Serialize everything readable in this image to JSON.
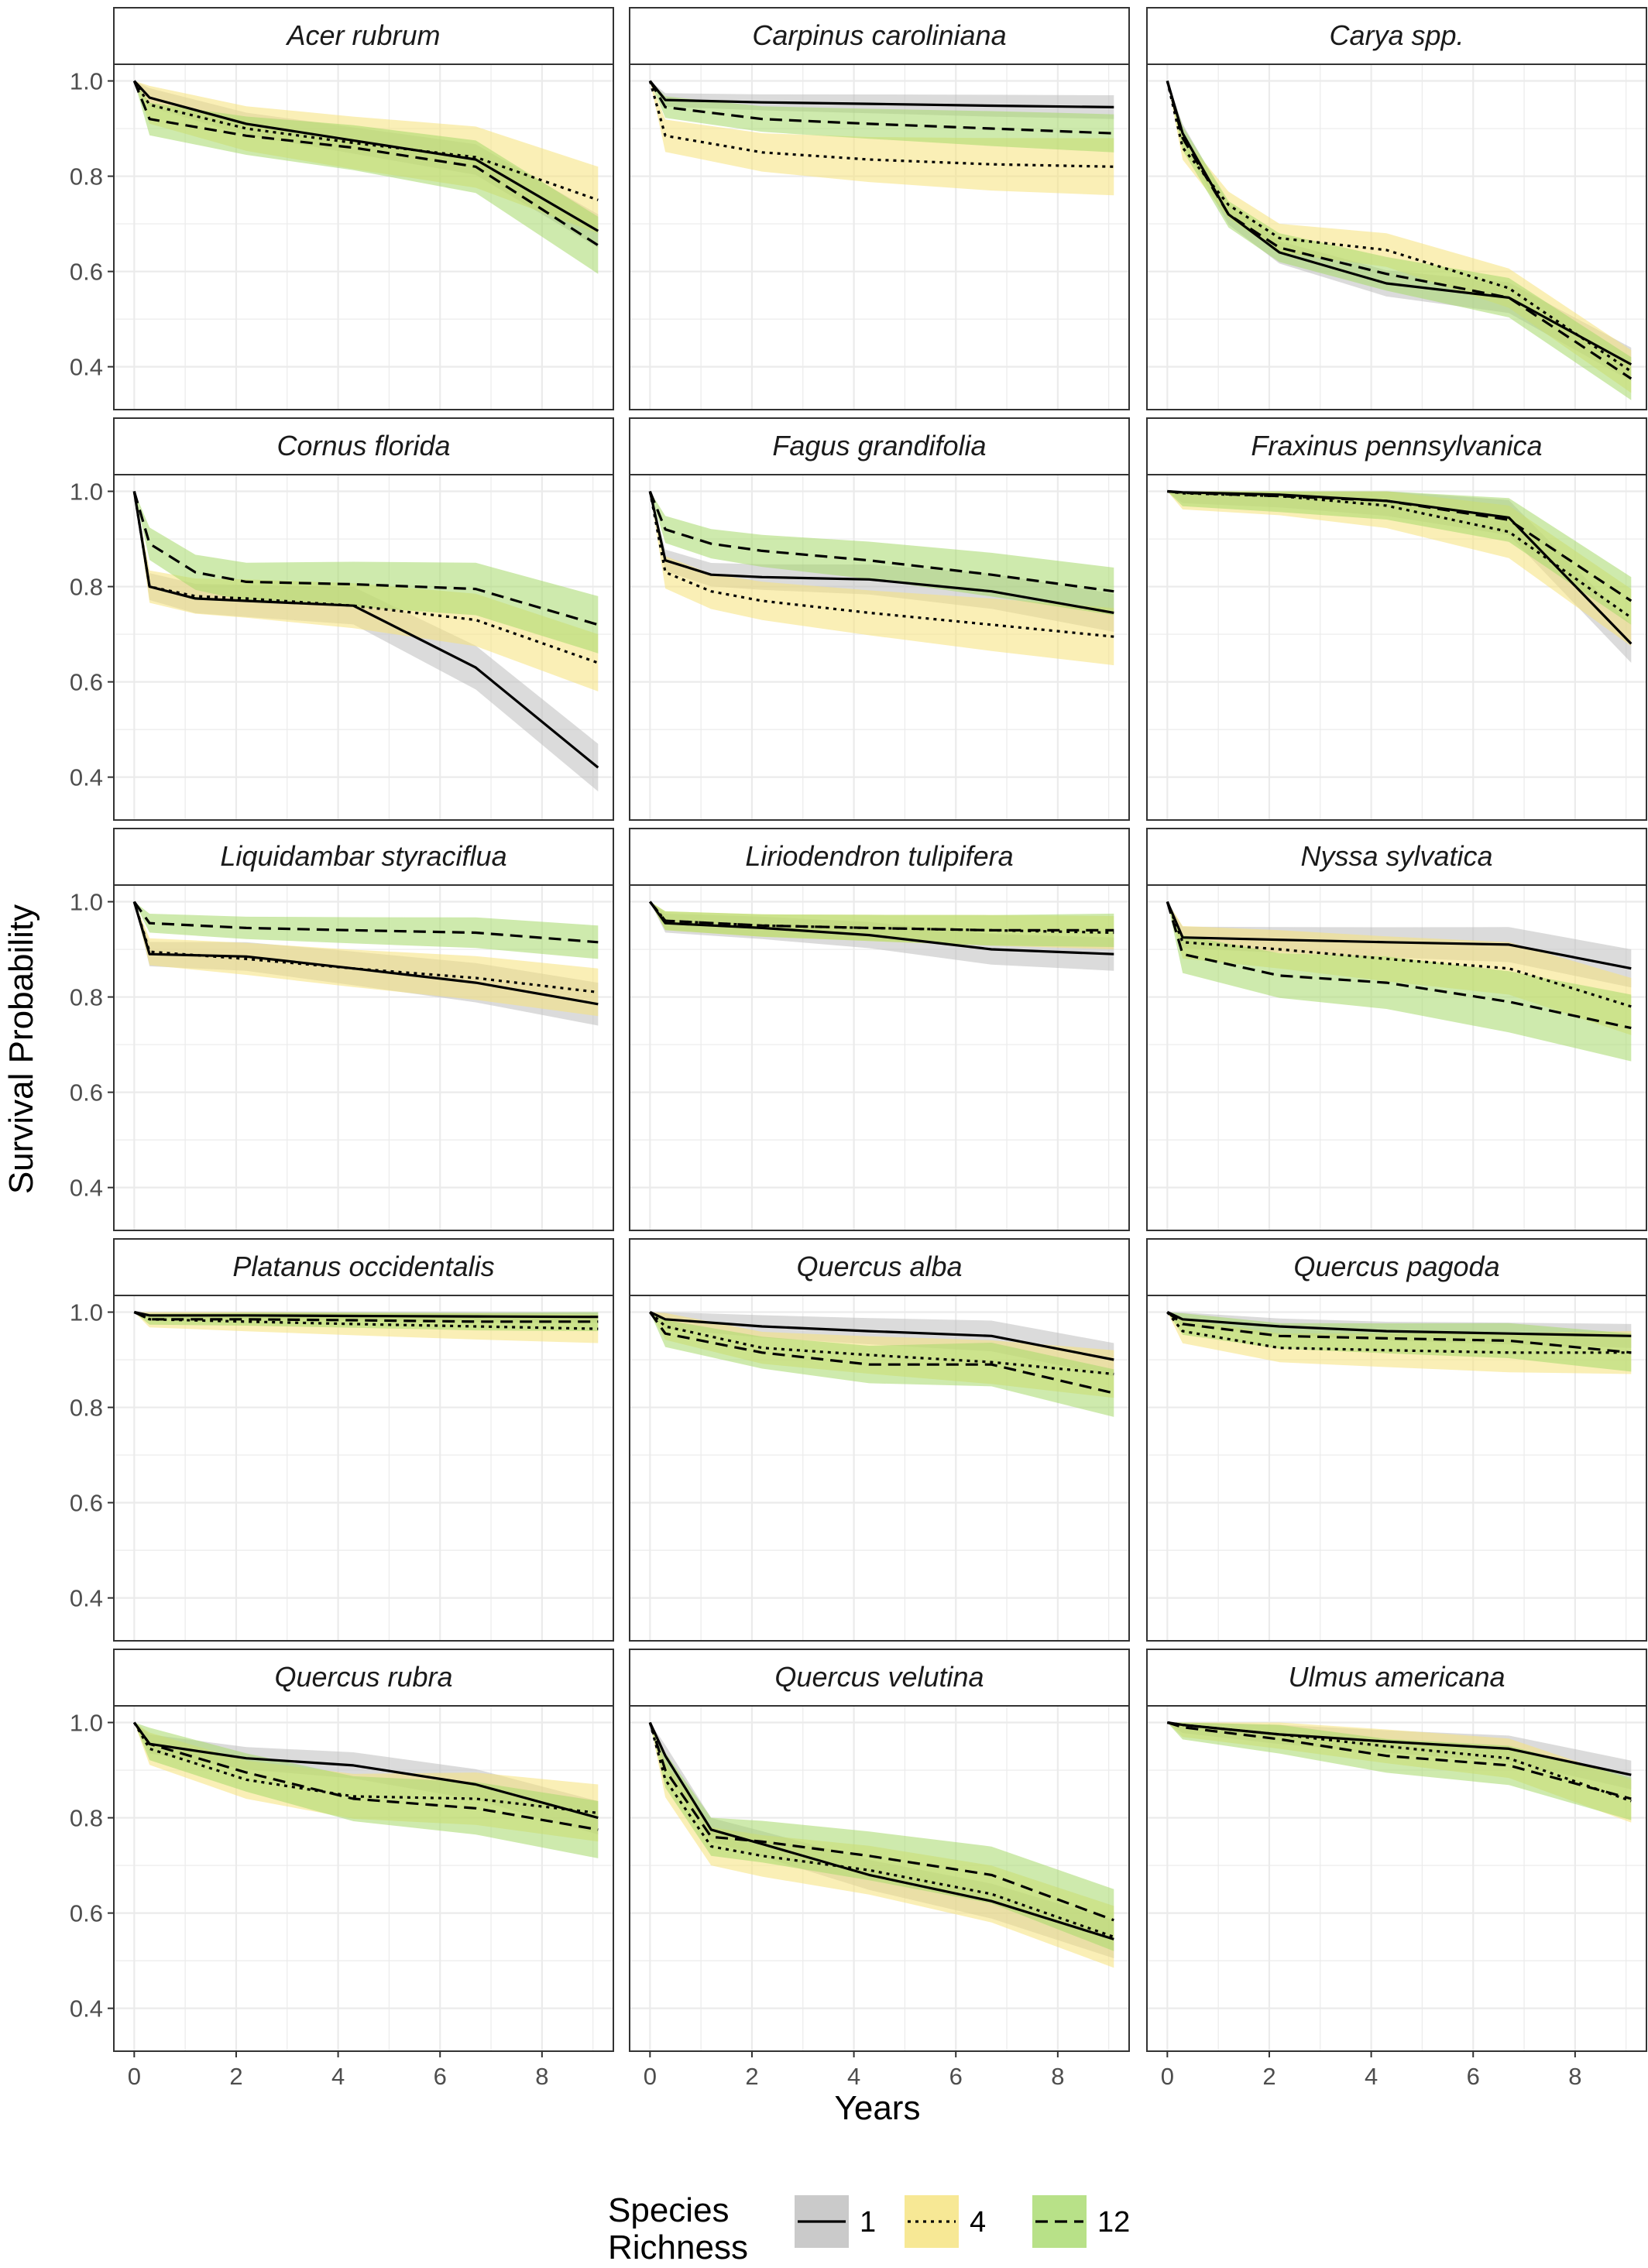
{
  "chart_data": {
    "type": "line",
    "xlabel": "Years",
    "ylabel": "Survival Probability",
    "xlim": [
      -0.4,
      9.4
    ],
    "ylim": [
      0.31,
      1.035
    ],
    "x_ticks": [
      0,
      2,
      4,
      6,
      8
    ],
    "y_ticks": [
      0.4,
      0.6,
      0.8,
      1.0
    ],
    "x_tick_labels": [
      "0",
      "2",
      "4",
      "6",
      "8"
    ],
    "y_tick_labels": [
      "0.4",
      "0.6",
      "0.8",
      "1.0"
    ],
    "grid": true,
    "legend": {
      "title": "Species Richness",
      "position": "bottom",
      "entries": [
        {
          "label": "1",
          "linetype": "solid",
          "fill": "#bdbdbd"
        },
        {
          "label": "4",
          "linetype": "dotted",
          "fill": "#f5e27a"
        },
        {
          "label": "12",
          "linetype": "dashed",
          "fill": "#a6d96a"
        }
      ]
    },
    "colors": {
      "line": "#000000",
      "band_1": "#bdbdbd",
      "band_4": "#f5e27a",
      "band_12": "#a6d96a"
    },
    "panels": [
      {
        "species": "Acer rubrum",
        "series": [
          {
            "name": "1",
            "x": [
              0,
              0.3,
              2.2,
              4.3,
              6.7,
              9.1
            ],
            "y": [
              1.0,
              0.965,
              0.91,
              0.875,
              0.835,
              0.685
            ],
            "ci": 0.035
          },
          {
            "name": "4",
            "x": [
              0,
              0.3,
              2.2,
              4.3,
              6.7,
              9.1
            ],
            "y": [
              1.0,
              0.95,
              0.9,
              0.87,
              0.84,
              0.75
            ],
            "ci": 0.07
          },
          {
            "name": "12",
            "x": [
              0,
              0.3,
              2.2,
              4.3,
              6.7,
              9.1
            ],
            "y": [
              1.0,
              0.92,
              0.885,
              0.86,
              0.82,
              0.655
            ],
            "ci": 0.06
          }
        ]
      },
      {
        "species": "Carpinus caroliniana",
        "series": [
          {
            "name": "1",
            "x": [
              0,
              0.3,
              2.2,
              4.3,
              6.7,
              9.1
            ],
            "y": [
              1.0,
              0.96,
              0.955,
              0.952,
              0.948,
              0.945
            ],
            "ci": 0.025
          },
          {
            "name": "4",
            "x": [
              0,
              0.3,
              2.2,
              4.3,
              6.7,
              9.1
            ],
            "y": [
              1.0,
              0.885,
              0.85,
              0.835,
              0.825,
              0.82
            ],
            "ci": 0.06
          },
          {
            "name": "12",
            "x": [
              0,
              0.3,
              2.2,
              4.3,
              6.7,
              9.1
            ],
            "y": [
              1.0,
              0.945,
              0.92,
              0.91,
              0.9,
              0.89
            ],
            "ci": 0.04
          }
        ]
      },
      {
        "species": "Carya spp.",
        "series": [
          {
            "name": "1",
            "x": [
              0,
              0.3,
              1.2,
              2.2,
              4.3,
              6.7,
              9.1
            ],
            "y": [
              1.0,
              0.89,
              0.72,
              0.64,
              0.575,
              0.545,
              0.405
            ],
            "ci": 0.035
          },
          {
            "name": "4",
            "x": [
              0,
              0.3,
              1.2,
              2.2,
              4.3,
              6.7,
              9.1
            ],
            "y": [
              1.0,
              0.86,
              0.74,
              0.67,
              0.645,
              0.565,
              0.39
            ],
            "ci": 0.045
          },
          {
            "name": "12",
            "x": [
              0,
              0.3,
              1.2,
              2.2,
              4.3,
              6.7,
              9.1
            ],
            "y": [
              1.0,
              0.88,
              0.72,
              0.65,
              0.595,
              0.545,
              0.375
            ],
            "ci": 0.045
          }
        ]
      },
      {
        "species": "Cornus florida",
        "series": [
          {
            "name": "1",
            "x": [
              0,
              0.3,
              1.2,
              2.2,
              4.3,
              6.7,
              9.1
            ],
            "y": [
              1.0,
              0.8,
              0.775,
              0.77,
              0.76,
              0.63,
              0.42
            ],
            "ci": 0.05
          },
          {
            "name": "4",
            "x": [
              0,
              0.3,
              1.2,
              2.2,
              4.3,
              6.7,
              9.1
            ],
            "y": [
              1.0,
              0.8,
              0.78,
              0.775,
              0.76,
              0.73,
              0.64
            ],
            "ci": 0.06
          },
          {
            "name": "12",
            "x": [
              0,
              0.3,
              1.2,
              2.2,
              4.3,
              6.7,
              9.1
            ],
            "y": [
              1.0,
              0.89,
              0.83,
              0.81,
              0.805,
              0.795,
              0.72
            ],
            "ci": 0.06
          }
        ]
      },
      {
        "species": "Fagus grandifolia",
        "series": [
          {
            "name": "1",
            "x": [
              0,
              0.3,
              1.2,
              2.2,
              4.3,
              6.7,
              9.1
            ],
            "y": [
              1.0,
              0.855,
              0.825,
              0.82,
              0.815,
              0.79,
              0.745
            ],
            "ci": 0.04
          },
          {
            "name": "4",
            "x": [
              0,
              0.3,
              1.2,
              2.2,
              4.3,
              6.7,
              9.1
            ],
            "y": [
              1.0,
              0.83,
              0.79,
              0.77,
              0.745,
              0.72,
              0.695
            ],
            "ci": 0.06
          },
          {
            "name": "12",
            "x": [
              0,
              0.3,
              1.2,
              2.2,
              4.3,
              6.7,
              9.1
            ],
            "y": [
              1.0,
              0.92,
              0.89,
              0.875,
              0.855,
              0.825,
              0.79
            ],
            "ci": 0.05
          }
        ]
      },
      {
        "species": "Fraxinus pennsylvanica",
        "series": [
          {
            "name": "1",
            "x": [
              0,
              0.3,
              2.2,
              4.3,
              6.7,
              9.1
            ],
            "y": [
              1.0,
              0.998,
              0.993,
              0.98,
              0.945,
              0.68
            ],
            "ci": 0.04
          },
          {
            "name": "4",
            "x": [
              0,
              0.3,
              2.2,
              4.3,
              6.7,
              9.1
            ],
            "y": [
              1.0,
              0.996,
              0.99,
              0.97,
              0.915,
              0.735
            ],
            "ci": 0.06
          },
          {
            "name": "12",
            "x": [
              0,
              0.3,
              2.2,
              4.3,
              6.7,
              9.1
            ],
            "y": [
              1.0,
              0.997,
              0.99,
              0.98,
              0.94,
              0.77
            ],
            "ci": 0.05
          }
        ]
      },
      {
        "species": "Liquidambar styraciflua",
        "series": [
          {
            "name": "1",
            "x": [
              0,
              0.3,
              2.2,
              4.3,
              6.7,
              9.1
            ],
            "y": [
              1.0,
              0.89,
              0.885,
              0.86,
              0.83,
              0.785
            ],
            "ci": 0.045
          },
          {
            "name": "4",
            "x": [
              0,
              0.3,
              2.2,
              4.3,
              6.7,
              9.1
            ],
            "y": [
              1.0,
              0.895,
              0.88,
              0.86,
              0.84,
              0.81
            ],
            "ci": 0.05
          },
          {
            "name": "12",
            "x": [
              0,
              0.3,
              2.2,
              4.3,
              6.7,
              9.1
            ],
            "y": [
              1.0,
              0.955,
              0.945,
              0.94,
              0.935,
              0.915
            ],
            "ci": 0.035
          }
        ]
      },
      {
        "species": "Liriodendron tulipifera",
        "series": [
          {
            "name": "1",
            "x": [
              0,
              0.3,
              2.2,
              4.3,
              6.7,
              9.1
            ],
            "y": [
              1.0,
              0.955,
              0.945,
              0.93,
              0.9,
              0.89
            ],
            "ci": 0.035
          },
          {
            "name": "4",
            "x": [
              0,
              0.3,
              2.2,
              4.3,
              6.7,
              9.1
            ],
            "y": [
              1.0,
              0.96,
              0.95,
              0.945,
              0.94,
              0.935
            ],
            "ci": 0.035
          },
          {
            "name": "12",
            "x": [
              0,
              0.3,
              2.2,
              4.3,
              6.7,
              9.1
            ],
            "y": [
              1.0,
              0.96,
              0.95,
              0.945,
              0.94,
              0.94
            ],
            "ci": 0.035
          }
        ]
      },
      {
        "species": "Nyssa sylvatica",
        "series": [
          {
            "name": "1",
            "x": [
              0,
              0.3,
              2.2,
              4.3,
              6.7,
              9.1
            ],
            "y": [
              1.0,
              0.925,
              0.92,
              0.915,
              0.91,
              0.86
            ],
            "ci": 0.04
          },
          {
            "name": "4",
            "x": [
              0,
              0.3,
              2.2,
              4.3,
              6.7,
              9.1
            ],
            "y": [
              1.0,
              0.915,
              0.9,
              0.88,
              0.86,
              0.78
            ],
            "ci": 0.06
          },
          {
            "name": "12",
            "x": [
              0,
              0.3,
              2.2,
              4.3,
              6.7,
              9.1
            ],
            "y": [
              1.0,
              0.89,
              0.845,
              0.83,
              0.79,
              0.735
            ],
            "ci": 0.07
          }
        ]
      },
      {
        "species": "Platanus occidentalis",
        "series": [
          {
            "name": "1",
            "x": [
              0,
              0.3,
              2.2,
              4.3,
              6.7,
              9.1
            ],
            "y": [
              1.0,
              0.993,
              0.993,
              0.992,
              0.991,
              0.99
            ],
            "ci": 0.012
          },
          {
            "name": "4",
            "x": [
              0,
              0.3,
              2.2,
              4.3,
              6.7,
              9.1
            ],
            "y": [
              1.0,
              0.985,
              0.98,
              0.975,
              0.97,
              0.965
            ],
            "ci": 0.03
          },
          {
            "name": "12",
            "x": [
              0,
              0.3,
              2.2,
              4.3,
              6.7,
              9.1
            ],
            "y": [
              1.0,
              0.985,
              0.985,
              0.983,
              0.98,
              0.98
            ],
            "ci": 0.02
          }
        ]
      },
      {
        "species": "Quercus alba",
        "series": [
          {
            "name": "1",
            "x": [
              0,
              0.3,
              2.2,
              4.3,
              6.7,
              9.1
            ],
            "y": [
              1.0,
              0.985,
              0.97,
              0.96,
              0.95,
              0.9
            ],
            "ci": 0.035
          },
          {
            "name": "4",
            "x": [
              0,
              0.3,
              2.2,
              4.3,
              6.7,
              9.1
            ],
            "y": [
              1.0,
              0.97,
              0.925,
              0.91,
              0.895,
              0.87
            ],
            "ci": 0.05
          },
          {
            "name": "12",
            "x": [
              0,
              0.3,
              2.2,
              4.3,
              6.7,
              9.1
            ],
            "y": [
              1.0,
              0.955,
              0.915,
              0.89,
              0.89,
              0.83
            ],
            "ci": 0.05
          }
        ]
      },
      {
        "species": "Quercus pagoda",
        "series": [
          {
            "name": "1",
            "x": [
              0,
              0.3,
              2.2,
              4.3,
              6.7,
              9.1
            ],
            "y": [
              1.0,
              0.985,
              0.97,
              0.96,
              0.955,
              0.95
            ],
            "ci": 0.025
          },
          {
            "name": "4",
            "x": [
              0,
              0.3,
              2.2,
              4.3,
              6.7,
              9.1
            ],
            "y": [
              1.0,
              0.96,
              0.925,
              0.92,
              0.915,
              0.915
            ],
            "ci": 0.045
          },
          {
            "name": "12",
            "x": [
              0,
              0.3,
              2.2,
              4.3,
              6.7,
              9.1
            ],
            "y": [
              1.0,
              0.975,
              0.95,
              0.945,
              0.94,
              0.915
            ],
            "ci": 0.04
          }
        ]
      },
      {
        "species": "Quercus rubra",
        "series": [
          {
            "name": "1",
            "x": [
              0,
              0.3,
              2.2,
              4.3,
              6.7,
              9.1
            ],
            "y": [
              1.0,
              0.955,
              0.925,
              0.91,
              0.87,
              0.8
            ],
            "ci": 0.035
          },
          {
            "name": "4",
            "x": [
              0,
              0.3,
              2.2,
              4.3,
              6.7,
              9.1
            ],
            "y": [
              1.0,
              0.945,
              0.88,
              0.845,
              0.84,
              0.81
            ],
            "ci": 0.06
          },
          {
            "name": "12",
            "x": [
              0,
              0.3,
              2.2,
              4.3,
              6.7,
              9.1
            ],
            "y": [
              1.0,
              0.955,
              0.895,
              0.84,
              0.82,
              0.775
            ],
            "ci": 0.06
          }
        ]
      },
      {
        "species": "Quercus velutina",
        "series": [
          {
            "name": "1",
            "x": [
              0,
              0.3,
              1.2,
              2.2,
              4.3,
              6.7,
              9.1
            ],
            "y": [
              1.0,
              0.93,
              0.775,
              0.745,
              0.68,
              0.625,
              0.545
            ],
            "ci": 0.04
          },
          {
            "name": "4",
            "x": [
              0,
              0.3,
              1.2,
              2.2,
              4.3,
              6.7,
              9.1
            ],
            "y": [
              1.0,
              0.88,
              0.74,
              0.72,
              0.69,
              0.64,
              0.55
            ],
            "ci": 0.065
          },
          {
            "name": "12",
            "x": [
              0,
              0.3,
              1.2,
              2.2,
              4.3,
              6.7,
              9.1
            ],
            "y": [
              1.0,
              0.9,
              0.76,
              0.75,
              0.72,
              0.68,
              0.585
            ],
            "ci": 0.065
          }
        ]
      },
      {
        "species": "Ulmus americana",
        "series": [
          {
            "name": "1",
            "x": [
              0,
              0.3,
              2.2,
              4.3,
              6.7,
              9.1
            ],
            "y": [
              1.0,
              0.995,
              0.975,
              0.96,
              0.945,
              0.89
            ],
            "ci": 0.03
          },
          {
            "name": "4",
            "x": [
              0,
              0.3,
              2.2,
              4.3,
              6.7,
              9.1
            ],
            "y": [
              1.0,
              0.995,
              0.975,
              0.95,
              0.925,
              0.835
            ],
            "ci": 0.045
          },
          {
            "name": "12",
            "x": [
              0,
              0.3,
              2.2,
              4.3,
              6.7,
              9.1
            ],
            "y": [
              1.0,
              0.99,
              0.965,
              0.93,
              0.91,
              0.84
            ],
            "ci": 0.045
          }
        ]
      }
    ]
  }
}
